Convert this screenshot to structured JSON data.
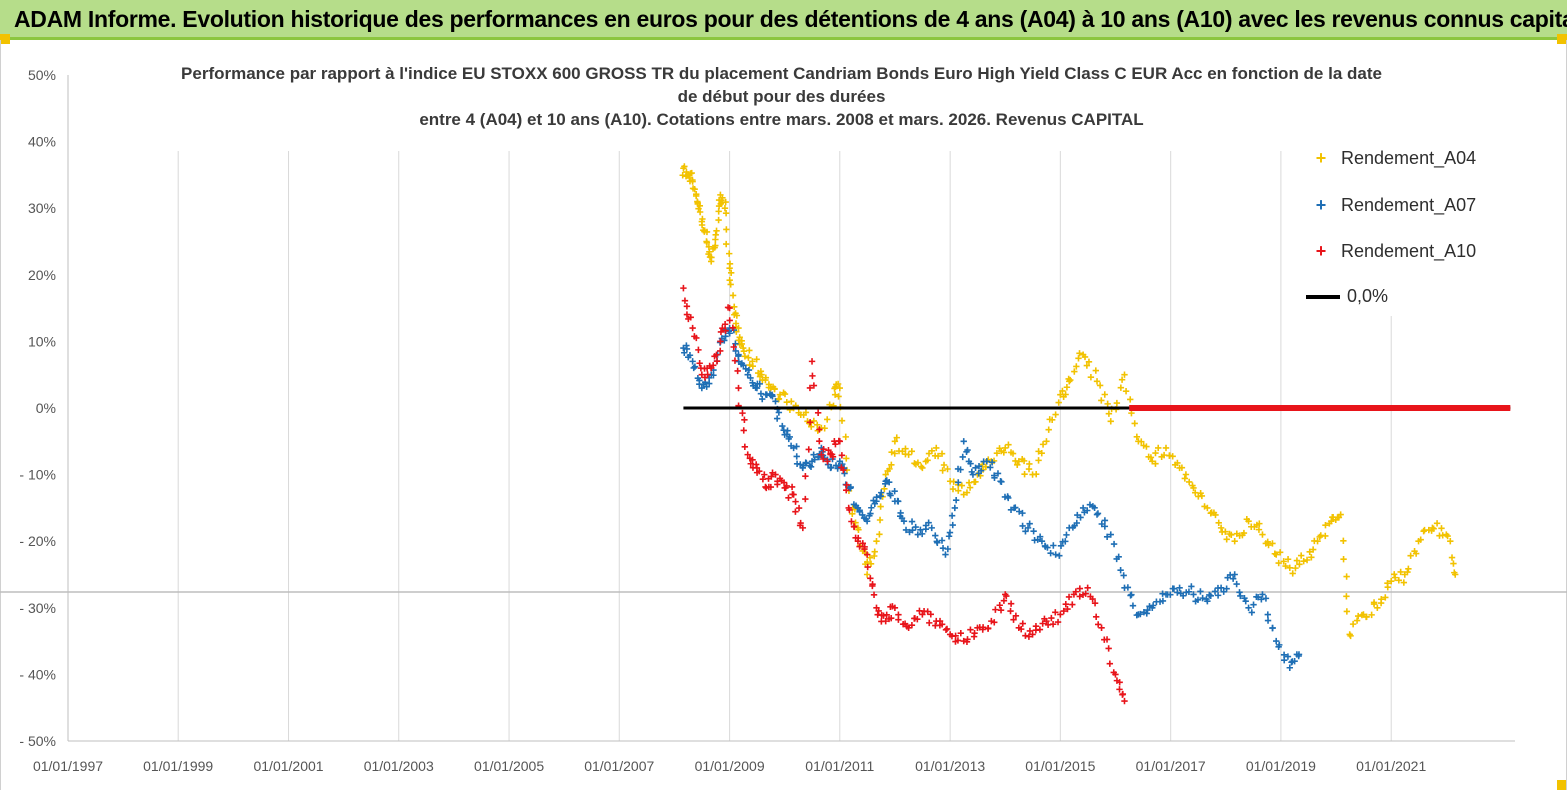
{
  "header": {
    "title": "ADAM Informe. Evolution historique des performances en euros pour des détentions de 4 ans (A04) à 10 ans (A10) avec les revenus connus capitalisés"
  },
  "colors": {
    "banner": "#b6dd8a",
    "a04": "#f2c200",
    "a07": "#1f6fb5",
    "a10": "#e8141a",
    "zero": "#000000"
  },
  "chart_data": {
    "type": "scatter",
    "title_lines": [
      "Performance par rapport à l'indice EU STOXX 600 GROSS TR  du placement Candriam Bonds Euro High Yield Class C EUR Acc en fonction de la date",
      "de début pour des durées",
      "entre 4 (A04) et 10 ans (A10). Cotations entre mars. 2008 et mars. 2026. Revenus CAPITAL"
    ],
    "ylim": [
      -50,
      50
    ],
    "yticks": [
      50,
      40,
      30,
      20,
      10,
      0,
      -10,
      -20,
      -30,
      -40,
      -50
    ],
    "ytick_labels": [
      "50%",
      "40%",
      "30%",
      "20%",
      "10%",
      "0%",
      "- 10%",
      "- 20%",
      "- 30%",
      "- 40%",
      "- 50%"
    ],
    "xlim": [
      "1997-01-01",
      "2023-04-01"
    ],
    "xtick_labels": [
      "01/01/1997",
      "01/01/1999",
      "01/01/2001",
      "01/01/2003",
      "01/01/2005",
      "01/01/2007",
      "01/01/2009",
      "01/01/2011",
      "01/01/2013",
      "01/01/2015",
      "01/01/2017",
      "01/01/2019",
      "01/01/2021"
    ],
    "grid": "vertical",
    "legend_position": "top-right",
    "legend": [
      {
        "key": "a04",
        "label": "Rendement_A04",
        "marker": "+"
      },
      {
        "key": "a07",
        "label": "Rendement_A07",
        "marker": "+"
      },
      {
        "key": "a10",
        "label": "Rendement_A10",
        "marker": "+"
      },
      {
        "key": "zero",
        "label": "0,0%",
        "marker": "line"
      }
    ],
    "series": [
      {
        "key": "a04",
        "name": "Rendement_A04",
        "points": [
          [
            "2008-03-01",
            36
          ],
          [
            "2008-04-01",
            35
          ],
          [
            "2008-05-01",
            34
          ],
          [
            "2008-06-01",
            31
          ],
          [
            "2008-07-01",
            28
          ],
          [
            "2008-08-01",
            25
          ],
          [
            "2008-09-01",
            22
          ],
          [
            "2008-10-01",
            26
          ],
          [
            "2008-11-01",
            32
          ],
          [
            "2008-12-01",
            30
          ],
          [
            "2009-01-01",
            21
          ],
          [
            "2009-02-01",
            14
          ],
          [
            "2009-03-01",
            12
          ],
          [
            "2009-04-01",
            9
          ],
          [
            "2009-06-01",
            7
          ],
          [
            "2009-08-01",
            5
          ],
          [
            "2009-10-01",
            3
          ],
          [
            "2009-12-01",
            2
          ],
          [
            "2010-03-01",
            0
          ],
          [
            "2010-06-01",
            -2
          ],
          [
            "2010-09-01",
            -3
          ],
          [
            "2010-12-01",
            2
          ],
          [
            "2011-01-01",
            3
          ],
          [
            "2011-03-01",
            -12
          ],
          [
            "2011-05-01",
            -18
          ],
          [
            "2011-07-01",
            -25
          ],
          [
            "2011-09-01",
            -20
          ],
          [
            "2011-11-01",
            -10
          ],
          [
            "2012-01-01",
            -5
          ],
          [
            "2012-04-01",
            -7
          ],
          [
            "2012-07-01",
            -9
          ],
          [
            "2012-10-01",
            -6
          ],
          [
            "2013-01-01",
            -11
          ],
          [
            "2013-04-01",
            -13
          ],
          [
            "2013-07-01",
            -10
          ],
          [
            "2013-10-01",
            -8
          ],
          [
            "2014-01-01",
            -6
          ],
          [
            "2014-04-01",
            -8
          ],
          [
            "2014-07-01",
            -10
          ],
          [
            "2014-10-01",
            -5
          ],
          [
            "2015-01-01",
            2
          ],
          [
            "2015-03-01",
            4
          ],
          [
            "2015-06-01",
            8
          ],
          [
            "2015-09-01",
            4
          ],
          [
            "2015-12-01",
            -2
          ],
          [
            "2016-03-01",
            5
          ],
          [
            "2016-06-01",
            -5
          ],
          [
            "2016-09-01",
            -8
          ],
          [
            "2016-12-01",
            -6
          ],
          [
            "2017-03-01",
            -9
          ],
          [
            "2017-06-01",
            -12
          ],
          [
            "2017-09-01",
            -15
          ],
          [
            "2017-12-01",
            -18
          ],
          [
            "2018-03-01",
            -20
          ],
          [
            "2018-06-01",
            -17
          ],
          [
            "2018-09-01",
            -19
          ],
          [
            "2018-12-01",
            -22
          ],
          [
            "2019-03-01",
            -24
          ],
          [
            "2019-06-01",
            -23
          ],
          [
            "2019-09-01",
            -20
          ],
          [
            "2019-12-01",
            -17
          ],
          [
            "2020-02-01",
            -16
          ],
          [
            "2020-04-01",
            -34
          ],
          [
            "2020-07-01",
            -31
          ],
          [
            "2020-10-01",
            -30
          ],
          [
            "2021-01-01",
            -26
          ],
          [
            "2021-04-01",
            -25
          ],
          [
            "2021-07-01",
            -20
          ],
          [
            "2021-10-01",
            -18
          ],
          [
            "2022-01-01",
            -19
          ],
          [
            "2022-03-01",
            -25
          ]
        ]
      },
      {
        "key": "a07",
        "name": "Rendement_A07",
        "points": [
          [
            "2008-03-01",
            9
          ],
          [
            "2008-05-01",
            7
          ],
          [
            "2008-07-01",
            3
          ],
          [
            "2008-09-01",
            5
          ],
          [
            "2008-11-01",
            10
          ],
          [
            "2009-01-01",
            12
          ],
          [
            "2009-03-01",
            8
          ],
          [
            "2009-05-01",
            5
          ],
          [
            "2009-07-01",
            3
          ],
          [
            "2009-09-01",
            2
          ],
          [
            "2009-11-01",
            1
          ],
          [
            "2010-01-01",
            -4
          ],
          [
            "2010-03-01",
            -6
          ],
          [
            "2010-05-01",
            -9
          ],
          [
            "2010-07-01",
            -8
          ],
          [
            "2010-09-01",
            -6
          ],
          [
            "2010-11-01",
            -9
          ],
          [
            "2011-01-01",
            -8
          ],
          [
            "2011-03-01",
            -12
          ],
          [
            "2011-05-01",
            -15
          ],
          [
            "2011-07-01",
            -17
          ],
          [
            "2011-09-01",
            -14
          ],
          [
            "2011-11-01",
            -11
          ],
          [
            "2012-01-01",
            -14
          ],
          [
            "2012-03-01",
            -17
          ],
          [
            "2012-06-01",
            -19
          ],
          [
            "2012-09-01",
            -18
          ],
          [
            "2012-12-01",
            -22
          ],
          [
            "2013-02-01",
            -15
          ],
          [
            "2013-04-01",
            -5
          ],
          [
            "2013-06-01",
            -10
          ],
          [
            "2013-09-01",
            -8
          ],
          [
            "2013-12-01",
            -11
          ],
          [
            "2014-03-01",
            -15
          ],
          [
            "2014-06-01",
            -18
          ],
          [
            "2014-09-01",
            -20
          ],
          [
            "2014-12-01",
            -22
          ],
          [
            "2015-03-01",
            -18
          ],
          [
            "2015-06-01",
            -15
          ],
          [
            "2015-09-01",
            -16
          ],
          [
            "2015-12-01",
            -19
          ],
          [
            "2016-03-01",
            -27
          ],
          [
            "2016-06-01",
            -31
          ],
          [
            "2016-09-01",
            -30
          ],
          [
            "2016-12-01",
            -28
          ],
          [
            "2017-03-01",
            -27
          ],
          [
            "2017-06-01",
            -28
          ],
          [
            "2017-09-01",
            -29
          ],
          [
            "2017-12-01",
            -27
          ],
          [
            "2018-03-01",
            -25
          ],
          [
            "2018-06-01",
            -30
          ],
          [
            "2018-09-01",
            -28
          ],
          [
            "2018-12-01",
            -35
          ],
          [
            "2019-03-01",
            -39
          ],
          [
            "2019-05-01",
            -37
          ]
        ]
      },
      {
        "key": "a10",
        "name": "Rendement_A10",
        "points": [
          [
            "2008-03-01",
            18
          ],
          [
            "2008-05-01",
            12
          ],
          [
            "2008-07-01",
            5
          ],
          [
            "2008-09-01",
            6
          ],
          [
            "2008-11-01",
            10
          ],
          [
            "2009-01-01",
            15
          ],
          [
            "2009-03-01",
            3
          ],
          [
            "2009-05-01",
            -7
          ],
          [
            "2009-07-01",
            -9
          ],
          [
            "2009-09-01",
            -12
          ],
          [
            "2009-11-01",
            -10
          ],
          [
            "2010-01-01",
            -12
          ],
          [
            "2010-03-01",
            -13
          ],
          [
            "2010-05-01",
            -18
          ],
          [
            "2010-07-01",
            7
          ],
          [
            "2010-09-01",
            -7
          ],
          [
            "2010-11-01",
            -7
          ],
          [
            "2011-01-01",
            -5
          ],
          [
            "2011-03-01",
            -15
          ],
          [
            "2011-05-01",
            -20
          ],
          [
            "2011-07-01",
            -22
          ],
          [
            "2011-09-01",
            -30
          ],
          [
            "2011-11-01",
            -32
          ],
          [
            "2012-01-01",
            -30
          ],
          [
            "2012-04-01",
            -33
          ],
          [
            "2012-07-01",
            -31
          ],
          [
            "2012-10-01",
            -32
          ],
          [
            "2013-01-01",
            -34
          ],
          [
            "2013-04-01",
            -35
          ],
          [
            "2013-07-01",
            -33
          ],
          [
            "2013-10-01",
            -32
          ],
          [
            "2014-01-01",
            -28
          ],
          [
            "2014-04-01",
            -33
          ],
          [
            "2014-07-01",
            -34
          ],
          [
            "2014-10-01",
            -32
          ],
          [
            "2015-01-01",
            -31
          ],
          [
            "2015-04-01",
            -28
          ],
          [
            "2015-07-01",
            -27
          ],
          [
            "2015-10-01",
            -33
          ],
          [
            "2016-01-01",
            -40
          ],
          [
            "2016-03-01",
            -44
          ]
        ]
      }
    ],
    "zero_line": {
      "label": "0,0%",
      "value": 0,
      "from": "2008-03-01",
      "to": "2023-03-01",
      "dense_from": "2016-04-01"
    }
  }
}
